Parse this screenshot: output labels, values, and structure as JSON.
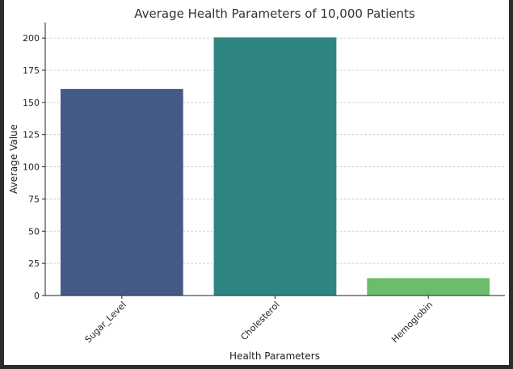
{
  "chart_data": {
    "type": "bar",
    "title": "Average Health Parameters of 10,000 Patients",
    "xlabel": "Health Parameters",
    "ylabel": "Average Value",
    "categories": [
      "Sugar_Level",
      "Cholesterol",
      "Hemoglobin"
    ],
    "values": [
      160.5,
      200.5,
      13.5
    ],
    "colors": [
      "#465a86",
      "#2e8480",
      "#6bbd6b"
    ],
    "ylim": [
      0,
      212
    ],
    "yticks": [
      0,
      25,
      50,
      75,
      100,
      125,
      150,
      175,
      200
    ],
    "grid": true,
    "grid_axis": "y",
    "legend": "none"
  }
}
